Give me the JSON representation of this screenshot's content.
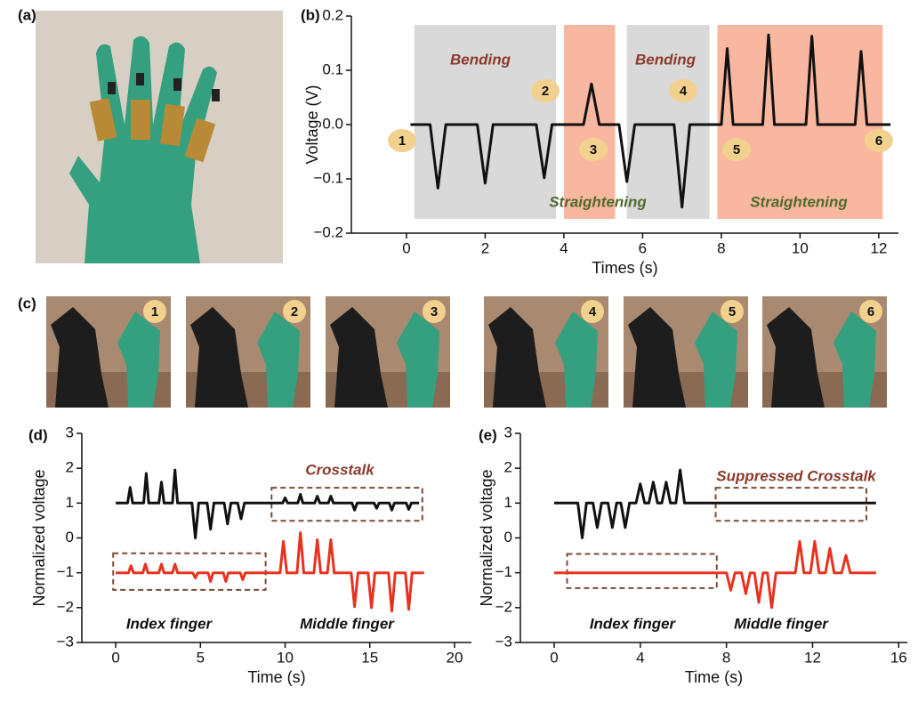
{
  "photos": {
    "a": {
      "panel_label": "(a)"
    },
    "c": {
      "panel_label": "(c)",
      "frames": [
        "1",
        "2",
        "3",
        "4",
        "5",
        "6"
      ]
    }
  },
  "chart_data": [
    {
      "type": "line",
      "panel_label": "(b)",
      "xlabel": "Times (s)",
      "ylabel": "Voltage (V)",
      "xlim": [
        -1.4,
        12.5
      ],
      "ylim": [
        -0.2,
        0.2
      ],
      "xticks": [
        0,
        2,
        4,
        6,
        8,
        10,
        12
      ],
      "yticks": [
        {
          "value": -0.2,
          "label": "−0.2"
        },
        {
          "value": -0.1,
          "label": "−0.1"
        },
        {
          "value": 0,
          "label": "0.0"
        },
        {
          "value": 0.1,
          "label": "0.1"
        },
        {
          "value": 0.2,
          "label": "0.2"
        }
      ],
      "regions": [
        {
          "x": [
            0.2,
            3.8
          ],
          "color": "#d9d9d9"
        },
        {
          "x": [
            4.0,
            5.3
          ],
          "color": "#f8b79e"
        },
        {
          "x": [
            5.6,
            7.7
          ],
          "color": "#d9d9d9"
        },
        {
          "x": [
            7.9,
            12.1
          ],
          "color": "#f8b79e"
        }
      ],
      "annotations": [
        {
          "text": "Bending",
          "color": "#8b3a2a"
        },
        {
          "text": "Bending",
          "color": "#8b3a2a"
        },
        {
          "text": "Straightening",
          "color": "#4e6b2e"
        },
        {
          "text": "Straightening",
          "color": "#4e6b2e"
        }
      ],
      "markers": [
        "1",
        "2",
        "3",
        "4",
        "5",
        "6"
      ],
      "series": [
        {
          "color": "#111111",
          "x": [
            0.1,
            0.6,
            0.8,
            1.0,
            1.8,
            2.0,
            2.2,
            3.3,
            3.5,
            3.7,
            4.5,
            4.7,
            4.9,
            5.4,
            5.6,
            5.8,
            6.8,
            7.0,
            7.2,
            8.0,
            8.15,
            8.3,
            9.05,
            9.2,
            9.35,
            10.15,
            10.3,
            10.45,
            11.4,
            11.55,
            11.7,
            12.3
          ],
          "values": [
            0,
            0,
            -0.117,
            0,
            0,
            -0.108,
            0,
            0,
            -0.098,
            0,
            0,
            0.075,
            0,
            0,
            -0.105,
            0,
            0,
            -0.152,
            0,
            0,
            0.14,
            0,
            0,
            0.165,
            0,
            0,
            0.163,
            0,
            0,
            0.135,
            0,
            0
          ]
        }
      ]
    },
    {
      "type": "line",
      "panel_label": "(d)",
      "xlabel": "Time (s)",
      "ylabel": "Normalized voltage",
      "xlim": [
        -2,
        21
      ],
      "ylim": [
        -3,
        3
      ],
      "xticks": [
        0,
        5,
        10,
        15,
        20
      ],
      "yticks": [
        {
          "value": -3,
          "label": "−3"
        },
        {
          "value": -2,
          "label": "−2"
        },
        {
          "value": -1,
          "label": "−1"
        },
        0,
        1,
        2,
        3
      ],
      "boxes": [
        {
          "x": [
            9.2,
            18.1
          ],
          "y": [
            0.49,
            1.44
          ]
        },
        {
          "x": [
            -0.15,
            8.85
          ],
          "y": [
            -1.49,
            -0.44
          ]
        }
      ],
      "annotations": [
        {
          "text": "Crosstalk",
          "color": "#8b3a2a"
        },
        {
          "text": "Index finger",
          "color": "#111111"
        },
        {
          "text": "Middle finger",
          "color": "#111111"
        }
      ],
      "series": [
        {
          "color": "#111111",
          "x": [
            0,
            0.7,
            0.85,
            1.0,
            1.65,
            1.8,
            1.95,
            2.55,
            2.7,
            2.85,
            3.35,
            3.5,
            3.65,
            4.5,
            4.7,
            4.9,
            5.4,
            5.6,
            5.8,
            6.4,
            6.6,
            6.8,
            7.2,
            7.4,
            7.6,
            9.85,
            10.0,
            10.15,
            10.75,
            10.9,
            11.05,
            11.75,
            11.9,
            12.05,
            12.55,
            12.7,
            12.85,
            13.95,
            14.1,
            14.25,
            15.25,
            15.4,
            15.55,
            16.15,
            16.3,
            16.45,
            17.15,
            17.3,
            17.45,
            17.9
          ],
          "values": [
            1,
            1,
            1.45,
            1,
            1,
            1.85,
            1,
            1,
            1.6,
            1,
            1,
            1.95,
            1,
            1,
            0,
            1,
            1,
            0.25,
            1,
            1,
            0.4,
            1,
            1,
            0.55,
            1,
            1,
            1.15,
            1,
            1,
            1.25,
            1,
            1,
            1.2,
            1,
            1,
            1.2,
            1,
            1,
            0.8,
            1,
            1,
            0.85,
            1,
            1,
            0.8,
            1,
            1,
            0.82,
            1,
            1
          ]
        },
        {
          "color": "#e8321e",
          "x": [
            0,
            0.75,
            0.9,
            1.05,
            1.6,
            1.75,
            1.9,
            2.55,
            2.7,
            2.85,
            3.35,
            3.5,
            3.65,
            4.55,
            4.7,
            4.85,
            5.45,
            5.6,
            5.75,
            6.35,
            6.5,
            6.65,
            7.35,
            7.5,
            7.65,
            9.7,
            9.9,
            10.1,
            10.7,
            10.9,
            11.1,
            11.7,
            11.9,
            12.1,
            12.5,
            12.7,
            12.9,
            13.9,
            14.1,
            14.3,
            14.9,
            15.1,
            15.3,
            16.1,
            16.3,
            16.5,
            17.1,
            17.3,
            17.5,
            18.2
          ],
          "values": [
            -1,
            -1,
            -0.8,
            -1,
            -1,
            -0.75,
            -1,
            -1,
            -0.75,
            -1,
            -1,
            -0.75,
            -1,
            -1,
            -1.15,
            -1,
            -1,
            -1.25,
            -1,
            -1,
            -1.25,
            -1,
            -1,
            -1.2,
            -1,
            -1,
            -0.1,
            -1,
            -1,
            0.15,
            -1,
            -1,
            -0.05,
            -1,
            -1,
            -0.05,
            -1,
            -1,
            -1.97,
            -1,
            -1,
            -2.0,
            -1,
            -1,
            -2.1,
            -1,
            -1,
            -2.05,
            -1,
            -1
          ]
        }
      ]
    },
    {
      "type": "line",
      "panel_label": "(e)",
      "xlabel": "Time (s)",
      "ylabel": "Normalized voltage",
      "xlim": [
        -1.57,
        16.4
      ],
      "ylim": [
        -3,
        3
      ],
      "xticks": [
        0,
        4,
        8,
        12,
        16
      ],
      "yticks": [
        {
          "value": -3,
          "label": "−3"
        },
        {
          "value": -2,
          "label": "−2"
        },
        {
          "value": -1,
          "label": "−1"
        },
        0,
        1,
        2,
        3
      ],
      "boxes": [
        {
          "x": [
            7.5,
            14.5
          ],
          "y": [
            0.49,
            1.44
          ]
        },
        {
          "x": [
            0.6,
            7.55
          ],
          "y": [
            -1.44,
            -0.46
          ]
        }
      ],
      "annotations": [
        {
          "text": "Suppressed Crosstalk",
          "color": "#8b3a2a"
        },
        {
          "text": "Index finger",
          "color": "#111111"
        },
        {
          "text": "Middle finger",
          "color": "#111111"
        }
      ],
      "series": [
        {
          "color": "#111111",
          "x": [
            0,
            1.1,
            1.3,
            1.5,
            1.8,
            2.0,
            2.2,
            2.5,
            2.7,
            2.9,
            3.1,
            3.3,
            3.5,
            3.8,
            4.0,
            4.2,
            4.4,
            4.6,
            4.8,
            5.0,
            5.2,
            5.4,
            5.65,
            5.85,
            6.05,
            14.95
          ],
          "values": [
            1,
            1,
            0,
            1,
            1,
            0.3,
            1,
            1,
            0.3,
            1,
            1,
            0.3,
            1,
            1,
            1.55,
            1,
            1,
            1.6,
            1,
            1,
            1.6,
            1,
            1,
            1.95,
            1,
            1
          ]
        },
        {
          "color": "#e8321e",
          "x": [
            0,
            8.0,
            8.2,
            8.4,
            8.7,
            8.9,
            9.1,
            9.3,
            9.5,
            9.7,
            9.9,
            10.1,
            10.3,
            11.2,
            11.4,
            11.6,
            11.9,
            12.1,
            12.3,
            12.6,
            12.8,
            13.0,
            13.35,
            13.55,
            13.75,
            14.95
          ],
          "values": [
            -1,
            -1,
            -1.5,
            -1,
            -1,
            -1.6,
            -1,
            -1,
            -1.85,
            -1,
            -1,
            -2.0,
            -1,
            -1,
            -0.1,
            -1,
            -1,
            -0.1,
            -1,
            -1,
            -0.3,
            -1,
            -1,
            -0.5,
            -1,
            -1
          ]
        }
      ]
    }
  ]
}
